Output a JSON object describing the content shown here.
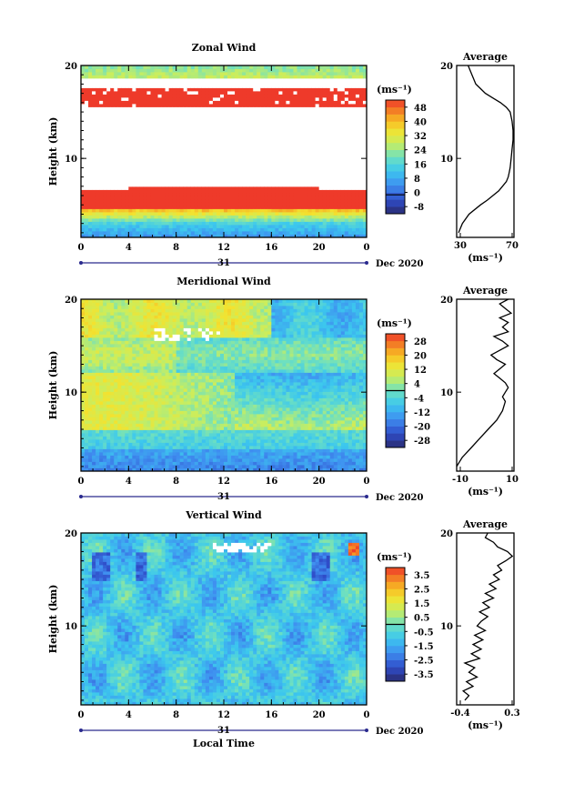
{
  "colorbar_unit": "(ms⁻¹)",
  "profile_unit": "(ms⁻¹)",
  "date_label": "Dec 2020",
  "day_label": "31",
  "x_axis_title": "Local Time",
  "y_axis_title": "Height (km)",
  "chart_data": [
    {
      "type": "heatmap",
      "title": "Zonal Wind",
      "ylabel": "Height (km)",
      "x_ticks": [
        "0",
        "4",
        "8",
        "12",
        "16",
        "20",
        "0"
      ],
      "y_ticks": [
        "20",
        "10"
      ],
      "xlim": [
        0,
        24
      ],
      "ylim": [
        1.5,
        20
      ],
      "colorbar": {
        "ticks": [
          "48",
          "40",
          "32",
          "24",
          "16",
          "8",
          "0",
          "-8"
        ],
        "range": [
          -10,
          50
        ]
      },
      "profile": {
        "title": "Average",
        "x_ticks": [
          "30",
          "70"
        ],
        "xlim": [
          20,
          80
        ],
        "height": [
          2.0,
          3.0,
          4.0,
          5.0,
          5.5,
          6.0,
          6.5,
          7.0,
          7.5,
          8.0,
          8.5,
          9.0,
          10.0,
          11.0,
          12.0,
          13.0,
          14.0,
          15.0,
          15.5,
          16.0,
          16.5,
          17.0,
          17.5,
          18.0,
          19.0,
          20.0
        ],
        "wind": [
          22,
          26,
          33,
          45,
          52,
          58,
          64,
          68,
          72,
          74,
          75,
          76,
          77,
          78,
          79,
          79,
          78,
          76,
          72,
          66,
          58,
          50,
          45,
          40,
          36,
          32
        ]
      }
    },
    {
      "type": "heatmap",
      "title": "Meridional Wind",
      "ylabel": "Height (km)",
      "x_ticks": [
        "0",
        "4",
        "8",
        "12",
        "16",
        "20",
        "0"
      ],
      "y_ticks": [
        "20",
        "10"
      ],
      "xlim": [
        0,
        24
      ],
      "ylim": [
        1.5,
        20
      ],
      "colorbar": {
        "ticks": [
          "28",
          "20",
          "12",
          "4",
          "-4",
          "-12",
          "-20",
          "-28"
        ],
        "range": [
          -32,
          32
        ]
      },
      "profile": {
        "title": "Average",
        "x_ticks": [
          "-10",
          "10"
        ],
        "xlim": [
          -10,
          10
        ],
        "height": [
          2.0,
          2.5,
          3.0,
          4.0,
          5.0,
          6.0,
          7.0,
          8.0,
          9.0,
          9.5,
          10.0,
          10.5,
          11.0,
          11.5,
          12.0,
          12.5,
          13.0,
          13.5,
          14.0,
          14.5,
          15.0,
          15.5,
          16.0,
          16.5,
          17.0,
          17.5,
          18.0,
          18.5,
          19.0,
          19.5,
          20.0
        ],
        "wind": [
          -10,
          -9,
          -8,
          -5,
          -2,
          1,
          4,
          6,
          7,
          6,
          7,
          8,
          7,
          5,
          3,
          5,
          7,
          4,
          2,
          5,
          8,
          6,
          3,
          8,
          6,
          8,
          5,
          9,
          7,
          5,
          8
        ]
      }
    },
    {
      "type": "heatmap",
      "title": "Vertical Wind",
      "ylabel": "Height (km)",
      "xlabel": "Local Time",
      "x_ticks": [
        "0",
        "4",
        "8",
        "12",
        "16",
        "20",
        "0"
      ],
      "y_ticks": [
        "20",
        "10"
      ],
      "xlim": [
        0,
        24
      ],
      "ylim": [
        1.5,
        20
      ],
      "colorbar": {
        "ticks": [
          "3.5",
          "2.5",
          "1.5",
          "0.5",
          "-0.5",
          "-1.5",
          "-2.5",
          "-3.5"
        ],
        "range": [
          -4,
          4
        ]
      },
      "profile": {
        "title": "Average",
        "x_ticks": [
          "-0.4",
          "0.3"
        ],
        "xlim": [
          -0.4,
          0.3
        ],
        "height": [
          2.0,
          2.5,
          3.0,
          3.5,
          4.0,
          4.5,
          5.0,
          5.5,
          6.0,
          6.5,
          7.0,
          7.5,
          8.0,
          8.5,
          9.0,
          9.5,
          10.0,
          10.5,
          11.0,
          11.5,
          12.0,
          12.5,
          13.0,
          13.5,
          14.0,
          14.5,
          15.0,
          15.5,
          16.0,
          16.5,
          17.0,
          17.5,
          18.0,
          18.5,
          19.0,
          19.5,
          20.0
        ],
        "wind": [
          -0.3,
          -0.25,
          -0.32,
          -0.2,
          -0.28,
          -0.15,
          -0.25,
          -0.18,
          -0.3,
          -0.12,
          -0.22,
          -0.1,
          -0.2,
          -0.08,
          -0.18,
          -0.05,
          -0.15,
          -0.1,
          -0.02,
          -0.12,
          0.0,
          -0.08,
          0.05,
          -0.05,
          0.08,
          0.0,
          0.12,
          0.05,
          0.15,
          0.1,
          0.2,
          0.28,
          0.22,
          0.1,
          0.05,
          -0.05,
          -0.02
        ]
      }
    }
  ]
}
